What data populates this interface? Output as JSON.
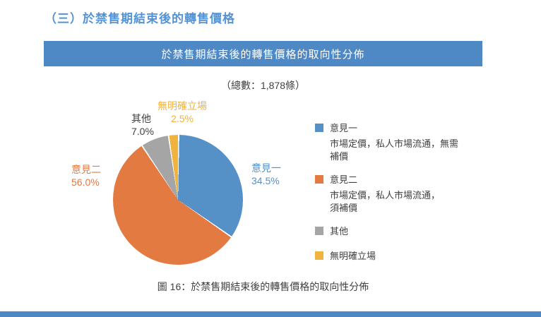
{
  "page": {
    "section_title": "（三）於禁售期結束後的轉售價格",
    "banner_title": "於禁售期結束後的轉售價格的取向性分佈",
    "total_label": "（總數：1,878條）",
    "caption": "圖 16：於禁售期結束後的轉售價格的取向性分佈"
  },
  "colors": {
    "title_blue": "#5494D6",
    "banner_bg": "#4E89C6",
    "text_dark": "#404040",
    "slice_blue": "#5590C6",
    "slice_orange": "#E27A42",
    "slice_gray": "#A5A5A5",
    "slice_yellow": "#F0B33E"
  },
  "chart_data": {
    "type": "pie",
    "title": "於禁售期結束後的轉售價格的取向性分佈",
    "subtitle": "（總數：1,878條）",
    "total_count": "1,878",
    "categories": [
      "意見一",
      "意見二",
      "其他",
      "無明確立場"
    ],
    "values": [
      34.5,
      56.0,
      7.0,
      2.5
    ],
    "unit": "%",
    "colors": [
      "#5590C6",
      "#E27A42",
      "#A5A5A5",
      "#F0B33E"
    ],
    "start_angle_deg": 0,
    "direction": "clockwise",
    "labels": [
      {
        "name": "意見一",
        "value_label": "34.5%"
      },
      {
        "name": "意見二",
        "value_label": "56.0%"
      },
      {
        "name": "其他",
        "value_label": "7.0%"
      },
      {
        "name": "無明確立場",
        "value_label": "2.5%"
      }
    ],
    "legend_position": "right",
    "legend": [
      {
        "label": "意見一",
        "desc_lines": [
          "市場定價，私人市場流通，無需",
          "補價"
        ]
      },
      {
        "label": "意見二",
        "desc_lines": [
          "市場定價，私人市場流通，",
          "須補價"
        ]
      },
      {
        "label": "其他",
        "desc_lines": []
      },
      {
        "label": "無明確立場",
        "desc_lines": []
      }
    ]
  }
}
